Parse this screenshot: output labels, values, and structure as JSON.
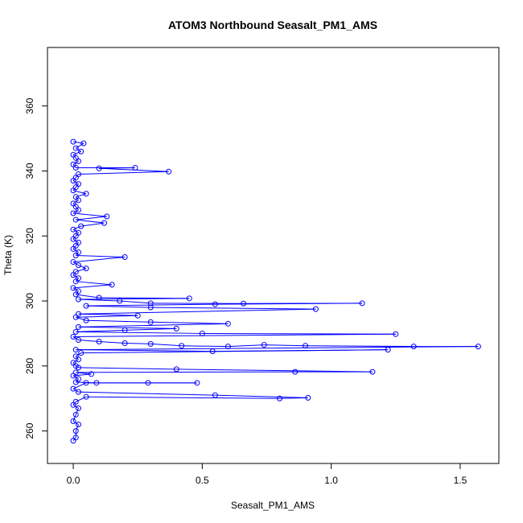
{
  "chart_data": {
    "type": "scatter",
    "title": "ATOM3 Northbound Seasalt_PM1_AMS",
    "xlabel": "Seasalt_PM1_AMS",
    "ylabel": "Theta (K)",
    "xlim": [
      -0.1,
      1.65
    ],
    "ylim": [
      250,
      378
    ],
    "x_ticks": [
      0,
      0.5,
      1,
      1.5
    ],
    "x_tick_labels": [
      "0.0",
      "0.5",
      "1.0",
      "1.5"
    ],
    "y_ticks": [
      260,
      280,
      300,
      320,
      340,
      360
    ],
    "y_tick_labels": [
      "260",
      "280",
      "300",
      "320",
      "340",
      "360"
    ],
    "grid": false,
    "legend": "none",
    "color": "#0000ff",
    "series": [
      {
        "connected": true,
        "points": [
          [
            0.0,
            257
          ],
          [
            0.01,
            258
          ],
          [
            0.01,
            260
          ],
          [
            0.02,
            262
          ],
          [
            0.0,
            263
          ],
          [
            0.01,
            265
          ],
          [
            0.02,
            267
          ],
          [
            0.0,
            268
          ],
          [
            0.01,
            269
          ],
          [
            0.05,
            270.5
          ],
          [
            0.8,
            270
          ],
          [
            0.91,
            270.2
          ],
          [
            0.55,
            271
          ],
          [
            0.02,
            272
          ],
          [
            0.0,
            273
          ],
          [
            0.05,
            274.8
          ],
          [
            0.48,
            274.8
          ],
          [
            0.29,
            274.8
          ],
          [
            0.09,
            274.8
          ],
          [
            0.01,
            275
          ],
          [
            0.02,
            276
          ],
          [
            0.0,
            277
          ],
          [
            0.07,
            277.5
          ],
          [
            0.01,
            278
          ],
          [
            0.86,
            278.2
          ],
          [
            1.16,
            278.2
          ],
          [
            0.4,
            279
          ],
          [
            0.02,
            279.5
          ],
          [
            0.01,
            280
          ],
          [
            0.0,
            281
          ],
          [
            0.02,
            282
          ],
          [
            0.01,
            283
          ],
          [
            0.03,
            284
          ],
          [
            1.22,
            285
          ],
          [
            0.54,
            284.5
          ],
          [
            0.01,
            285
          ],
          [
            1.57,
            286
          ],
          [
            1.32,
            286
          ],
          [
            0.9,
            286.2
          ],
          [
            0.74,
            286.5
          ],
          [
            0.6,
            286
          ],
          [
            0.42,
            286.2
          ],
          [
            0.3,
            286.8
          ],
          [
            0.2,
            287
          ],
          [
            0.1,
            287.5
          ],
          [
            0.02,
            288
          ],
          [
            0.0,
            289
          ],
          [
            1.25,
            289.8
          ],
          [
            0.5,
            290
          ],
          [
            0.01,
            290.5
          ],
          [
            0.2,
            291
          ],
          [
            0.4,
            291.5
          ],
          [
            0.02,
            292
          ],
          [
            0.6,
            293
          ],
          [
            0.3,
            293.5
          ],
          [
            0.05,
            294
          ],
          [
            0.01,
            295
          ],
          [
            0.25,
            295.5
          ],
          [
            0.02,
            296
          ],
          [
            0.94,
            297.5
          ],
          [
            0.3,
            298
          ],
          [
            0.05,
            298.5
          ],
          [
            0.55,
            299
          ],
          [
            1.12,
            299.3
          ],
          [
            0.66,
            299.2
          ],
          [
            0.3,
            299.3
          ],
          [
            0.18,
            300
          ],
          [
            0.02,
            300.5
          ],
          [
            0.45,
            300.8
          ],
          [
            0.1,
            301
          ],
          [
            0.01,
            302
          ],
          [
            0.02,
            303
          ],
          [
            0.0,
            304
          ],
          [
            0.15,
            305
          ],
          [
            0.01,
            306
          ],
          [
            0.02,
            307
          ],
          [
            0.0,
            308
          ],
          [
            0.01,
            309
          ],
          [
            0.05,
            310
          ],
          [
            0.02,
            311
          ],
          [
            0.0,
            312
          ],
          [
            0.2,
            313.5
          ],
          [
            0.01,
            314
          ],
          [
            0.02,
            315
          ],
          [
            0.0,
            316
          ],
          [
            0.01,
            317
          ],
          [
            0.02,
            318
          ],
          [
            0.0,
            319
          ],
          [
            0.01,
            320
          ],
          [
            0.02,
            321
          ],
          [
            0.0,
            322
          ],
          [
            0.03,
            323
          ],
          [
            0.12,
            324
          ],
          [
            0.01,
            325
          ],
          [
            0.13,
            326
          ],
          [
            0.0,
            327
          ],
          [
            0.02,
            328
          ],
          [
            0.01,
            329
          ],
          [
            0.0,
            330
          ],
          [
            0.02,
            331
          ],
          [
            0.01,
            332
          ],
          [
            0.05,
            333
          ],
          [
            0.0,
            334
          ],
          [
            0.01,
            335
          ],
          [
            0.02,
            336
          ],
          [
            0.0,
            337
          ],
          [
            0.01,
            338
          ],
          [
            0.02,
            339
          ],
          [
            0.37,
            339.8
          ],
          [
            0.1,
            340.8
          ],
          [
            0.24,
            341
          ],
          [
            0.01,
            341
          ],
          [
            0.0,
            342
          ],
          [
            0.02,
            343
          ],
          [
            0.01,
            344
          ],
          [
            0.0,
            345
          ],
          [
            0.03,
            346
          ],
          [
            0.01,
            347
          ],
          [
            0.04,
            348.5
          ],
          [
            0.0,
            349
          ]
        ]
      }
    ]
  }
}
